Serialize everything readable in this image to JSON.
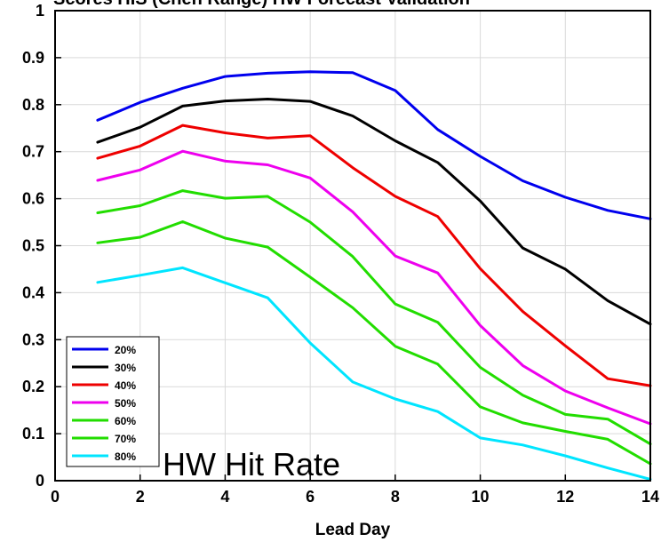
{
  "chart_data": {
    "type": "line",
    "title": "Scores HIS (Chen Range) HW Forecast Validation",
    "xlabel": "Lead Day",
    "ylabel": "",
    "xlim": [
      0,
      14
    ],
    "ylim": [
      0,
      1
    ],
    "xticks": [
      "0",
      "2",
      "4",
      "6",
      "8",
      "10",
      "12",
      "14"
    ],
    "yticks": [
      "0",
      "0.1",
      "0.2",
      "0.3",
      "0.4",
      "0.5",
      "0.6",
      "0.7",
      "0.8",
      "0.9",
      "1"
    ],
    "grid": true,
    "legend_position": "bottom-left",
    "annotation": "HW Hit Rate",
    "x": [
      1,
      2,
      3,
      4,
      5,
      6,
      7,
      8,
      9,
      10,
      11,
      12,
      13,
      14
    ],
    "series": [
      {
        "name": "20%",
        "color": "#0000ee",
        "values": [
          0.767,
          0.805,
          0.835,
          0.86,
          0.867,
          0.87,
          0.868,
          0.83,
          0.747,
          0.69,
          0.638,
          0.603,
          0.575,
          0.557
        ]
      },
      {
        "name": "30%",
        "color": "#000000",
        "values": [
          0.72,
          0.752,
          0.797,
          0.808,
          0.812,
          0.807,
          0.776,
          0.723,
          0.677,
          0.595,
          0.495,
          0.45,
          0.383,
          0.333
        ]
      },
      {
        "name": "40%",
        "color": "#ee0000",
        "values": [
          0.686,
          0.712,
          0.756,
          0.74,
          0.729,
          0.734,
          0.666,
          0.605,
          0.562,
          0.451,
          0.36,
          0.287,
          0.217,
          0.202
        ]
      },
      {
        "name": "50%",
        "color": "#ee00ee",
        "values": [
          0.639,
          0.661,
          0.701,
          0.68,
          0.672,
          0.644,
          0.572,
          0.478,
          0.442,
          0.33,
          0.245,
          0.191,
          0.155,
          0.121
        ]
      },
      {
        "name": "60%",
        "color": "#22dd00",
        "values": [
          0.57,
          0.585,
          0.617,
          0.601,
          0.605,
          0.55,
          0.477,
          0.376,
          0.337,
          0.241,
          0.182,
          0.141,
          0.131,
          0.078
        ]
      },
      {
        "name": "70%",
        "color": "#22dd00",
        "values": [
          0.506,
          0.518,
          0.551,
          0.516,
          0.497,
          0.433,
          0.368,
          0.286,
          0.248,
          0.157,
          0.123,
          0.105,
          0.088,
          0.036
        ]
      },
      {
        "name": "80%",
        "color": "#00e5ff",
        "values": [
          0.422,
          0.437,
          0.453,
          0.421,
          0.389,
          0.293,
          0.21,
          0.174,
          0.147,
          0.091,
          0.076,
          0.053,
          0.027,
          0.003
        ]
      }
    ]
  }
}
